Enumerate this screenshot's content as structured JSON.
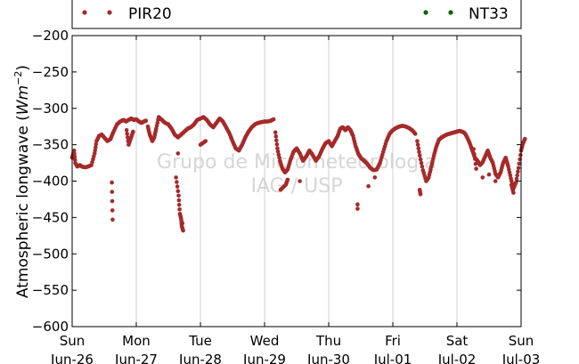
{
  "chart_data": {
    "type": "scatter",
    "title": "",
    "ylabel": {
      "prefix": "Atmospheric longwave (",
      "symbol": "Wm",
      "exponent": "−2",
      "suffix": ")"
    },
    "ylim": [
      -600,
      -200
    ],
    "yticks": [
      -200,
      -250,
      -300,
      -350,
      -400,
      -450,
      -500,
      -550,
      -600
    ],
    "xlim_days": [
      0,
      7
    ],
    "xticks": [
      {
        "day": 0,
        "weekday": "Sun",
        "date": "Jun-26"
      },
      {
        "day": 1,
        "weekday": "Mon",
        "date": "Jun-27"
      },
      {
        "day": 2,
        "weekday": "Tue",
        "date": "Jun-28"
      },
      {
        "day": 3,
        "weekday": "Wed",
        "date": "Jun-29"
      },
      {
        "day": 4,
        "weekday": "Thu",
        "date": "Jun-30"
      },
      {
        "day": 5,
        "weekday": "Fri",
        "date": "Jul-01"
      },
      {
        "day": 6,
        "weekday": "Sat",
        "date": "Jul-02"
      },
      {
        "day": 7,
        "weekday": "Sun",
        "date": "Jul-03"
      }
    ],
    "grid": "vertical",
    "legend": {
      "placement": "top"
    },
    "watermark": [
      "Grupo de Micrometeorologia",
      "IAG / USP"
    ],
    "series": [
      {
        "name": "PIR20",
        "color": "#a52a2a",
        "points": [
          [
            0.0,
            -368
          ],
          [
            0.03,
            -358
          ],
          [
            0.05,
            -375
          ],
          [
            0.08,
            -380
          ],
          [
            0.12,
            -378
          ],
          [
            0.15,
            -380
          ],
          [
            0.2,
            -381
          ],
          [
            0.25,
            -380
          ],
          [
            0.3,
            -378
          ],
          [
            0.35,
            -362
          ],
          [
            0.38,
            -345
          ],
          [
            0.42,
            -338
          ],
          [
            0.46,
            -336
          ],
          [
            0.5,
            -340
          ],
          [
            0.55,
            -345
          ],
          [
            0.6,
            -342
          ],
          [
            0.64,
            -333
          ],
          [
            0.7,
            -322
          ],
          [
            0.75,
            -318
          ],
          [
            0.8,
            -316
          ],
          [
            0.84,
            -318
          ],
          [
            0.88,
            -316
          ],
          [
            0.92,
            -314
          ],
          [
            0.96,
            -316
          ],
          [
            1.0,
            -315
          ],
          [
            1.04,
            -318
          ],
          [
            1.08,
            -320
          ],
          [
            1.12,
            -318
          ],
          [
            1.15,
            -317
          ],
          [
            0.62,
            -402
          ],
          [
            0.63,
            -453
          ],
          [
            0.85,
            -330
          ],
          [
            0.88,
            -350
          ],
          [
            0.92,
            -340
          ],
          [
            0.95,
            -332
          ],
          [
            1.18,
            -325
          ],
          [
            1.21,
            -336
          ],
          [
            1.25,
            -345
          ],
          [
            1.28,
            -340
          ],
          [
            1.31,
            -328
          ],
          [
            1.35,
            -312
          ],
          [
            1.4,
            -316
          ],
          [
            1.45,
            -320
          ],
          [
            1.5,
            -322
          ],
          [
            1.55,
            -328
          ],
          [
            1.6,
            -336
          ],
          [
            1.65,
            -340
          ],
          [
            1.7,
            -336
          ],
          [
            1.75,
            -332
          ],
          [
            1.8,
            -328
          ],
          [
            1.85,
            -326
          ],
          [
            1.9,
            -322
          ],
          [
            1.95,
            -316
          ],
          [
            2.0,
            -314
          ],
          [
            2.05,
            -312
          ],
          [
            2.1,
            -316
          ],
          [
            2.15,
            -322
          ],
          [
            2.2,
            -326
          ],
          [
            2.25,
            -320
          ],
          [
            2.3,
            -314
          ],
          [
            2.35,
            -318
          ],
          [
            2.4,
            -326
          ],
          [
            2.45,
            -334
          ],
          [
            2.5,
            -345
          ],
          [
            2.55,
            -355
          ],
          [
            2.6,
            -358
          ],
          [
            2.65,
            -350
          ],
          [
            2.7,
            -340
          ],
          [
            2.75,
            -332
          ],
          [
            2.8,
            -326
          ],
          [
            2.85,
            -322
          ],
          [
            2.9,
            -320
          ],
          [
            2.95,
            -319
          ],
          [
            3.0,
            -318
          ],
          [
            3.05,
            -318
          ],
          [
            3.1,
            -317
          ],
          [
            3.14,
            -315
          ],
          [
            1.62,
            -395
          ],
          [
            1.66,
            -420
          ],
          [
            1.68,
            -445
          ],
          [
            1.7,
            -452
          ],
          [
            1.71,
            -462
          ],
          [
            1.73,
            -468
          ],
          [
            1.72,
            -458
          ],
          [
            1.65,
            -362
          ],
          [
            2.0,
            -350
          ],
          [
            2.08,
            -345
          ],
          [
            3.17,
            -333
          ],
          [
            3.2,
            -355
          ],
          [
            3.24,
            -372
          ],
          [
            3.28,
            -383
          ],
          [
            3.32,
            -388
          ],
          [
            3.36,
            -384
          ],
          [
            3.4,
            -372
          ],
          [
            3.45,
            -360
          ],
          [
            3.5,
            -355
          ],
          [
            3.55,
            -362
          ],
          [
            3.6,
            -372
          ],
          [
            3.65,
            -366
          ],
          [
            3.7,
            -358
          ],
          [
            3.75,
            -364
          ],
          [
            3.8,
            -372
          ],
          [
            3.85,
            -366
          ],
          [
            3.9,
            -356
          ],
          [
            3.95,
            -348
          ],
          [
            4.0,
            -345
          ],
          [
            4.05,
            -352
          ],
          [
            4.1,
            -344
          ],
          [
            4.14,
            -338
          ],
          [
            4.18,
            -328
          ],
          [
            4.22,
            -326
          ],
          [
            4.26,
            -330
          ],
          [
            4.3,
            -326
          ],
          [
            4.34,
            -330
          ],
          [
            4.38,
            -338
          ],
          [
            4.42,
            -352
          ],
          [
            4.46,
            -362
          ],
          [
            4.5,
            -368
          ],
          [
            4.55,
            -372
          ],
          [
            4.6,
            -376
          ],
          [
            4.65,
            -382
          ],
          [
            4.7,
            -385
          ],
          [
            4.75,
            -384
          ],
          [
            4.8,
            -375
          ],
          [
            4.85,
            -360
          ],
          [
            4.9,
            -345
          ],
          [
            4.95,
            -335
          ],
          [
            5.0,
            -330
          ],
          [
            5.05,
            -327
          ],
          [
            5.1,
            -325
          ],
          [
            5.15,
            -324
          ],
          [
            5.2,
            -325
          ],
          [
            5.25,
            -327
          ],
          [
            5.3,
            -330
          ],
          [
            5.35,
            -335
          ],
          [
            3.25,
            -412
          ],
          [
            3.33,
            -405
          ],
          [
            3.36,
            -398
          ],
          [
            3.55,
            -400
          ],
          [
            4.45,
            -432
          ],
          [
            4.45,
            -438
          ],
          [
            4.62,
            -407
          ],
          [
            4.72,
            -395
          ],
          [
            5.42,
            -412
          ],
          [
            5.43,
            -418
          ],
          [
            5.38,
            -345
          ],
          [
            5.42,
            -365
          ],
          [
            5.47,
            -385
          ],
          [
            5.52,
            -400
          ],
          [
            5.56,
            -395
          ],
          [
            5.6,
            -380
          ],
          [
            5.64,
            -365
          ],
          [
            5.68,
            -352
          ],
          [
            5.72,
            -343
          ],
          [
            5.76,
            -340
          ],
          [
            5.8,
            -338
          ],
          [
            5.84,
            -336
          ],
          [
            5.88,
            -335
          ],
          [
            5.92,
            -334
          ],
          [
            5.96,
            -333
          ],
          [
            6.0,
            -332
          ],
          [
            6.04,
            -331
          ],
          [
            6.08,
            -332
          ],
          [
            6.12,
            -334
          ],
          [
            6.16,
            -340
          ],
          [
            6.2,
            -348
          ],
          [
            6.24,
            -358
          ],
          [
            6.28,
            -368
          ],
          [
            6.32,
            -372
          ],
          [
            6.36,
            -378
          ],
          [
            6.4,
            -374
          ],
          [
            6.44,
            -366
          ],
          [
            6.48,
            -358
          ],
          [
            6.52,
            -368
          ],
          [
            6.56,
            -375
          ],
          [
            6.6,
            -390
          ],
          [
            6.64,
            -395
          ],
          [
            6.68,
            -388
          ],
          [
            6.72,
            -375
          ],
          [
            6.76,
            -368
          ],
          [
            6.8,
            -380
          ],
          [
            6.84,
            -396
          ],
          [
            6.88,
            -410
          ],
          [
            6.92,
            -402
          ],
          [
            6.96,
            -382
          ],
          [
            7.0,
            -358
          ],
          [
            7.03,
            -348
          ],
          [
            7.06,
            -342
          ],
          [
            6.26,
            -356
          ],
          [
            6.3,
            -383
          ],
          [
            6.4,
            -395
          ],
          [
            6.5,
            -391
          ],
          [
            6.85,
            -405
          ],
          [
            6.88,
            -416
          ],
          [
            6.6,
            -400
          ]
        ]
      },
      {
        "name": "NT33",
        "color": "#006400",
        "points": []
      }
    ]
  }
}
